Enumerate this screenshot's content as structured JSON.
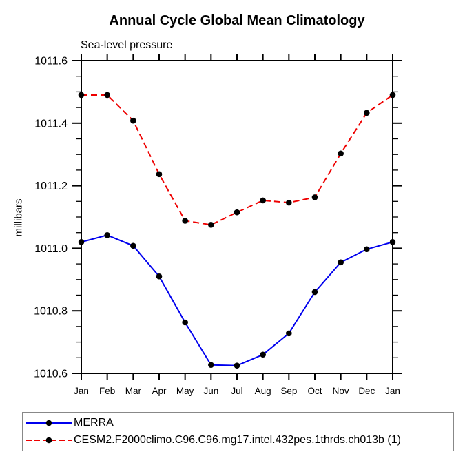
{
  "chart_data": {
    "type": "line",
    "title": "Annual Cycle Global Mean Climatology",
    "subtitle": "Sea-level pressure",
    "ylabel": "millibars",
    "xlabel": "",
    "categories": [
      "Jan",
      "Feb",
      "Mar",
      "Apr",
      "May",
      "Jun",
      "Jul",
      "Aug",
      "Sep",
      "Oct",
      "Nov",
      "Dec",
      "Jan"
    ],
    "series": [
      {
        "name": "MERRA",
        "color": "#0000ee",
        "line_style": "solid",
        "marker": "filled-circle",
        "marker_color": "#000000",
        "values": [
          1011.02,
          1011.042,
          1011.008,
          1010.91,
          1010.763,
          1010.627,
          1010.625,
          1010.66,
          1010.728,
          1010.86,
          1010.955,
          1010.997,
          1011.02
        ]
      },
      {
        "name": "CESM2.F2000climo.C96.C96.mg17.intel.432pes.1thrds.ch013b (1)",
        "color": "#ee0000",
        "line_style": "dashed",
        "marker": "filled-circle",
        "marker_color": "#000000",
        "values": [
          1011.49,
          1011.49,
          1011.408,
          1011.237,
          1011.088,
          1011.075,
          1011.115,
          1011.153,
          1011.146,
          1011.163,
          1011.303,
          1011.433,
          1011.49
        ]
      }
    ],
    "ylim": [
      1010.6,
      1011.6
    ],
    "ytick_labels": [
      "1010.6",
      "1010.8",
      "1011.0",
      "1011.2",
      "1011.4",
      "1011.6"
    ],
    "ytick_major_step": 0.2,
    "ytick_minor_step": 0.05,
    "grid": false,
    "legend_position": "bottom-left",
    "axis_color": "#000000",
    "background_color": "#ffffff"
  }
}
